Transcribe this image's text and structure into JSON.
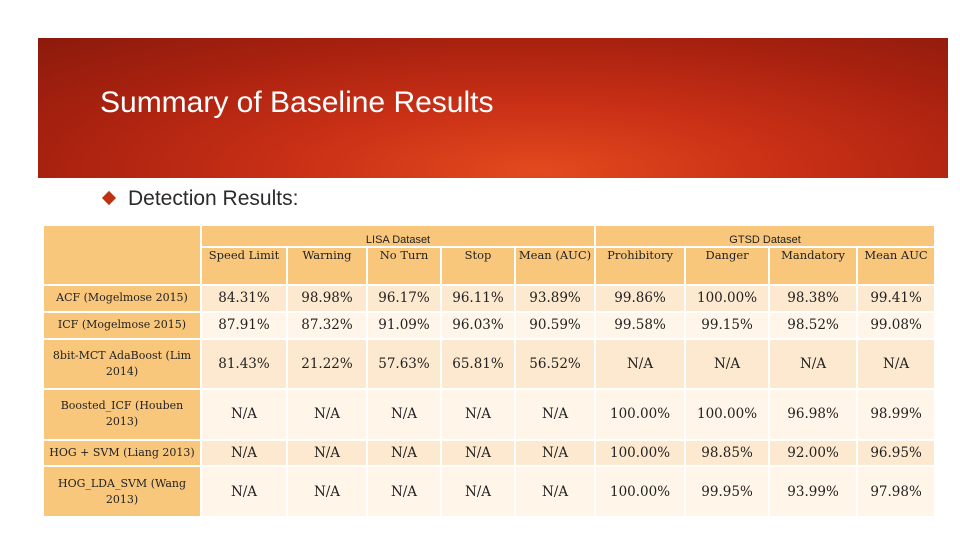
{
  "slide": {
    "title": "Summary of Baseline Results",
    "bullet": "Detection Results:"
  },
  "table": {
    "groups": [
      "LISA Dataset",
      "GTSD Dataset"
    ],
    "columns": [
      "Speed Limit",
      "Warning",
      "No Turn",
      "Stop",
      "Mean (AUC)",
      "Prohibitory",
      "Danger",
      "Mandatory",
      "Mean AUC"
    ],
    "rows": [
      {
        "label": "ACF (Mogelmose 2015)",
        "values": [
          "84.31%",
          "98.98%",
          "96.17%",
          "96.11%",
          "93.89%",
          "99.86%",
          "100.00%",
          "98.38%",
          "99.41%"
        ]
      },
      {
        "label": "ICF (Mogelmose 2015)",
        "values": [
          "87.91%",
          "87.32%",
          "91.09%",
          "96.03%",
          "90.59%",
          "99.58%",
          "99.15%",
          "98.52%",
          "99.08%"
        ]
      },
      {
        "label": "8bit-MCT AdaBoost (Lim 2014)",
        "values": [
          "81.43%",
          "21.22%",
          "57.63%",
          "65.81%",
          "56.52%",
          "N/A",
          "N/A",
          "N/A",
          "N/A"
        ]
      },
      {
        "label": "Boosted_ICF (Houben 2013)",
        "values": [
          "N/A",
          "N/A",
          "N/A",
          "N/A",
          "N/A",
          "100.00%",
          "100.00%",
          "96.98%",
          "98.99%"
        ]
      },
      {
        "label": "HOG + SVM (Liang 2013)",
        "values": [
          "N/A",
          "N/A",
          "N/A",
          "N/A",
          "N/A",
          "100.00%",
          "98.85%",
          "92.00%",
          "96.95%"
        ]
      },
      {
        "label": "HOG_LDA_SVM (Wang 2013)",
        "values": [
          "N/A",
          "N/A",
          "N/A",
          "N/A",
          "N/A",
          "100.00%",
          "99.95%",
          "93.99%",
          "97.98%"
        ]
      }
    ]
  }
}
